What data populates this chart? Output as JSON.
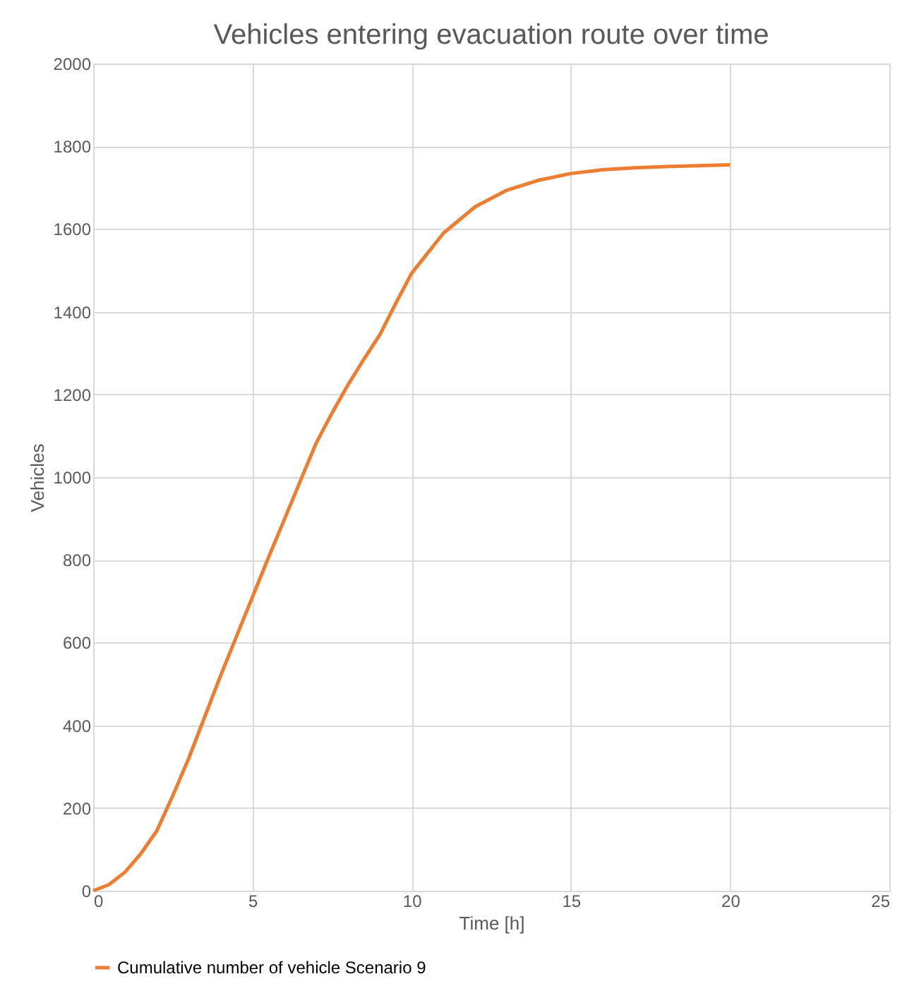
{
  "chart_data": {
    "type": "line",
    "title": "Vehicles entering evacuation route over time",
    "xlabel": "Time [h]",
    "ylabel": "Vehicles",
    "x": [
      0,
      0.5,
      1,
      1.5,
      2,
      2.5,
      3,
      3.5,
      4,
      4.5,
      5,
      5.5,
      6,
      6.5,
      7,
      7.5,
      8,
      8.5,
      9,
      9.5,
      10,
      11,
      12,
      13,
      14,
      15,
      16,
      17,
      18,
      19,
      20
    ],
    "series": [
      {
        "name": "Cumulative number of vehicle Scenario 9",
        "color": "#ed7d31",
        "values": [
          0,
          15,
          45,
          90,
          145,
          230,
          320,
          420,
          520,
          615,
          710,
          805,
          897,
          990,
          1082,
          1155,
          1223,
          1285,
          1344,
          1420,
          1493,
          1590,
          1654,
          1694,
          1718,
          1734,
          1743,
          1748,
          1751,
          1753,
          1755
        ]
      }
    ],
    "xlim": [
      0,
      25
    ],
    "xticks": [
      0,
      5,
      10,
      15,
      20,
      25
    ],
    "ylim": [
      0,
      2000
    ],
    "yticks": [
      0,
      200,
      400,
      600,
      800,
      1000,
      1200,
      1400,
      1600,
      1800,
      2000
    ],
    "grid": true,
    "legend": "bottom",
    "marker": "none",
    "line_style": "solid"
  }
}
